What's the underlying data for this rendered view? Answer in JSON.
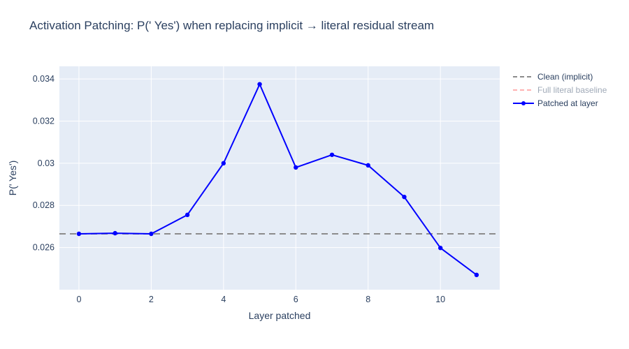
{
  "chart_data": {
    "type": "line",
    "title": "Activation Patching: P(' Yes') when replacing implicit → literal residual stream",
    "xlabel": "Layer patched",
    "ylabel": "P(' Yes')",
    "x": [
      0,
      1,
      2,
      3,
      4,
      5,
      6,
      7,
      8,
      9,
      10,
      11
    ],
    "series": [
      {
        "name": "Patched at layer",
        "values": [
          0.02665,
          0.02668,
          0.02665,
          0.02755,
          0.03,
          0.03375,
          0.0298,
          0.0304,
          0.0299,
          0.0284,
          0.02598,
          0.0247
        ],
        "color": "#0000ff",
        "marker": true
      }
    ],
    "baselines": [
      {
        "name": "Clean (implicit)",
        "value": 0.02665,
        "color": "#8c8c8c",
        "dash": true
      }
    ],
    "legend": [
      {
        "label": "Clean (implicit)",
        "color": "#8c8c8c",
        "dash": true,
        "marker": false,
        "faded": false
      },
      {
        "label": "Full literal baseline",
        "color": "#ff5555",
        "dash": true,
        "marker": false,
        "faded": true
      },
      {
        "label": "Patched at layer",
        "color": "#0000ff",
        "dash": false,
        "marker": true,
        "faded": false
      }
    ],
    "xlim": [
      -0.54,
      11.64
    ],
    "ylim": [
      0.024,
      0.0346
    ],
    "xticks": [
      0,
      2,
      4,
      6,
      8,
      10
    ],
    "xtick_labels": [
      "0",
      "2",
      "4",
      "6",
      "8",
      "10"
    ],
    "yticks": [
      0.026,
      0.028,
      0.03,
      0.032,
      0.034
    ],
    "ytick_labels": [
      "0.026",
      "0.028",
      "0.03",
      "0.032",
      "0.034"
    ],
    "grid": true,
    "legend_position": "right",
    "plot_bg": "#e5ecf6",
    "grid_color": "#ffffff",
    "text_color": "#2a3f5f"
  }
}
